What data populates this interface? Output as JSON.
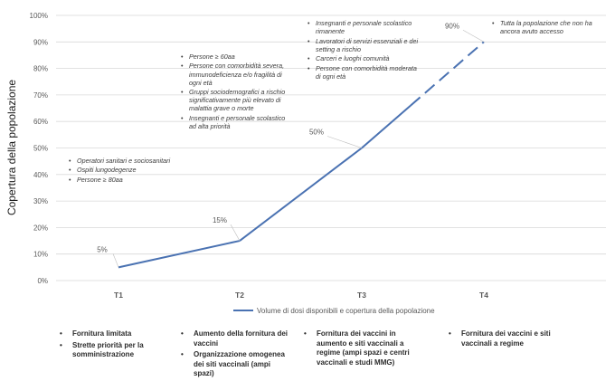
{
  "chart_data": {
    "type": "line",
    "ylabel": "Copertura della popolazione",
    "xlabel": "",
    "categories": [
      "T1",
      "T2",
      "T3",
      "T4"
    ],
    "ylim": [
      0,
      100
    ],
    "yticks": [
      0,
      10,
      20,
      30,
      40,
      50,
      60,
      70,
      80,
      90,
      100
    ],
    "ytick_suffix": "%",
    "grid": true,
    "series": [
      {
        "name": "Volume di dosi disponibili e copertura della popolazione",
        "color": "#4a72b2",
        "points": [
          {
            "x": "T1",
            "y": 5,
            "label": "5%"
          },
          {
            "x": "T2",
            "y": 15,
            "label": "15%"
          },
          {
            "x": "T3",
            "y": 50,
            "label": "50%"
          },
          {
            "x": "T4",
            "y": 90,
            "label": "90%"
          }
        ],
        "dashed_segment_after": "T3",
        "dash_start_fraction": 0.4
      }
    ],
    "legend_position": "bottom-center",
    "annotations": [
      {
        "category": "T1",
        "items": [
          "Operatori sanitari e sociosanitari",
          "Ospiti lungodegenze",
          "Persone ≥ 80aa"
        ]
      },
      {
        "category": "T2",
        "items": [
          "Persone ≥ 60aa",
          "Persone con comorbidità severa, immunodeficienza e/o fragilità di ogni età",
          "Gruppi sociodemografici a rischio significativamente più elevato di malattia grave o morte",
          "Insegnanti e personale scolastico ad alta priorità"
        ]
      },
      {
        "category": "T3",
        "items": [
          "Insegnanti e personale scolastico rimanente",
          "Lavoratori di servizi essenziali e dei setting a rischio",
          "Carceri e luoghi comunità",
          "Persone con comorbidità moderata di ogni età"
        ]
      },
      {
        "category": "T4",
        "items": [
          "Tutta la popolazione che non ha ancora avuto accesso"
        ]
      }
    ]
  },
  "footer_columns": [
    {
      "items": [
        "Fornitura limitata",
        "Strette priorità per la somministrazione"
      ]
    },
    {
      "items": [
        "Aumento della fornitura dei vaccini",
        "Organizzazione omogenea dei siti vaccinali (ampi spazi)"
      ]
    },
    {
      "items": [
        "Fornitura dei vaccini in aumento e siti vaccinali a regime (ampi spazi e centri vaccinali e studi MMG)"
      ]
    },
    {
      "items": [
        "Fornitura dei vaccini e siti vaccinali a regime"
      ]
    }
  ],
  "colors": {
    "line": "#4a72b2",
    "grid": "#d9d9d9",
    "axis_text": "#595959"
  }
}
